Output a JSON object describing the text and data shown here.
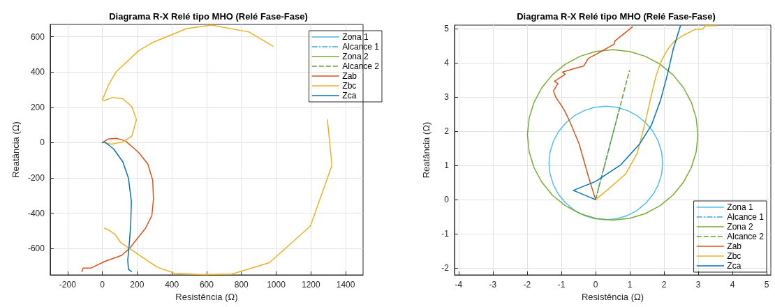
{
  "chart_data": [
    {
      "type": "line",
      "title": "Diagrama R-X Relé tipo MHO (Relé Fase-Fase)",
      "xlabel": "Resistência (Ω)",
      "ylabel": "Reatância (Ω)",
      "xlim": [
        -300,
        1500
      ],
      "xticks": [
        -200,
        0,
        200,
        400,
        600,
        800,
        1000,
        1200,
        1400
      ],
      "ylim": [
        -750,
        670
      ],
      "yticks": [
        -600,
        -400,
        -200,
        0,
        200,
        400,
        600
      ],
      "grid": true,
      "legend": "top right",
      "marker": "none",
      "series": [
        {
          "name": "Zona 1",
          "color": "#4dbeee",
          "line_style": "solid"
        },
        {
          "name": "Alcance 1",
          "color": "#3aa9dc",
          "line_style": "dashdot"
        },
        {
          "name": "Zona 2",
          "color": "#77ac30",
          "line_style": "solid"
        },
        {
          "name": "Alcance 2",
          "color": "#64a028",
          "line_style": "dashed"
        },
        {
          "name": "Zab",
          "color": "#d95319",
          "line_style": "solid",
          "x": [
            0,
            33,
            79,
            131,
            209,
            262,
            290,
            294,
            285,
            248,
            157,
            111,
            13,
            -65,
            -111,
            -118
          ],
          "values": [
            0,
            20,
            24,
            11,
            -56,
            -122,
            -215,
            -321,
            -413,
            -486,
            -599,
            -639,
            -674,
            -711,
            -711,
            -731
          ]
        },
        {
          "name": "Zbc",
          "color": "#edb120",
          "line_style": "solid",
          "x": [
            13,
            33,
            72,
            105,
            163,
            314,
            419,
            575,
            746,
            961,
            1197,
            1321,
            1295,
            null,
            981,
            844,
            628,
            484,
            288,
            209,
            79,
            33,
            0,
            13,
            59,
            118,
            170,
            196,
            170,
            118,
            52,
            10
          ],
          "values": [
            -486,
            -493,
            -519,
            -566,
            -605,
            -705,
            -742,
            -748,
            -745,
            -681,
            -473,
            -129,
            130,
            null,
            547,
            627,
            666,
            646,
            567,
            521,
            401,
            322,
            242,
            238,
            256,
            249,
            203,
            130,
            37,
            4,
            -9,
            0
          ]
        },
        {
          "name": "Zca",
          "color": "#0072bd",
          "line_style": "solid",
          "x": [
            0,
            13,
            65,
            118,
            150,
            167,
            163,
            154,
            146,
            150,
            167
          ],
          "values": [
            0,
            4,
            -36,
            -109,
            -201,
            -334,
            -466,
            -586,
            -665,
            -718,
            -731
          ]
        }
      ]
    },
    {
      "type": "line",
      "title": "Diagrama R-X Relé tipo MHO (Relé Fase-Fase)",
      "xlabel": "Resistência (Ω)",
      "ylabel": "Reatância (Ω)",
      "xlim": [
        -4.12,
        5.12
      ],
      "xticks": [
        -4,
        -3,
        -2,
        -1,
        0,
        1,
        2,
        3,
        4,
        5
      ],
      "ylim": [
        -2.2,
        5.1
      ],
      "yticks": [
        -2,
        -1,
        0,
        1,
        2,
        3,
        4,
        5
      ],
      "grid": true,
      "legend": "bottom right",
      "marker": "none",
      "series": [
        {
          "name": "Zona 1",
          "color": "#4dbeee",
          "line_style": "solid",
          "x": [
            1.96,
            1.93,
            1.83,
            1.68,
            1.47,
            1.22,
            0.94,
            0.62,
            0.3,
            -0.02,
            -0.34,
            -0.62,
            -0.87,
            -1.08,
            -1.23,
            -1.33,
            -1.36,
            -1.33,
            -1.23,
            -1.08,
            -0.87,
            -0.62,
            -0.34,
            -0.02,
            0.3,
            0.62,
            0.94,
            1.22,
            1.47,
            1.68,
            1.83,
            1.93,
            1.96,
            1.93
          ],
          "values": [
            1.07,
            1.39,
            1.71,
            1.99,
            2.24,
            2.45,
            2.6,
            2.7,
            2.73,
            2.7,
            2.6,
            2.45,
            2.24,
            1.99,
            1.71,
            1.39,
            1.07,
            0.75,
            0.43,
            0.15,
            -0.1,
            -0.31,
            -0.46,
            -0.56,
            -0.59,
            -0.56,
            -0.46,
            -0.31,
            -0.1,
            0.15,
            0.43,
            0.75,
            1.07,
            1.39
          ]
        },
        {
          "name": "Alcance 1",
          "color": "#3aa9dc",
          "line_style": "dashdot",
          "x": [
            0,
            0.71
          ],
          "values": [
            0,
            2.7
          ]
        },
        {
          "name": "Zona 2",
          "color": "#77ac30",
          "line_style": "solid",
          "x": [
            2.99,
            2.94,
            2.8,
            2.57,
            2.26,
            1.88,
            1.45,
            0.99,
            0.5,
            0.01,
            -0.45,
            -0.88,
            -1.26,
            -1.57,
            -1.8,
            -1.94,
            -1.99,
            -1.94,
            -1.8,
            -1.57,
            -1.26,
            -0.88,
            -0.45,
            0.01,
            0.5,
            0.99,
            1.45,
            1.88,
            2.26,
            2.57,
            2.8,
            2.94,
            2.99,
            2.94
          ],
          "values": [
            1.89,
            2.38,
            2.84,
            3.27,
            3.65,
            3.96,
            4.19,
            4.33,
            4.38,
            4.33,
            4.19,
            3.96,
            3.65,
            3.27,
            2.84,
            2.38,
            1.89,
            1.4,
            0.94,
            0.51,
            0.13,
            -0.18,
            -0.41,
            -0.55,
            -0.6,
            -0.55,
            -0.41,
            -0.18,
            0.13,
            0.51,
            0.94,
            1.4,
            1.89,
            2.38
          ]
        },
        {
          "name": "Alcance 2",
          "color": "#64a028",
          "line_style": "dashed",
          "x": [
            0,
            0.99
          ],
          "values": [
            0,
            3.77
          ]
        },
        {
          "name": "Zab",
          "color": "#d95319",
          "line_style": "solid",
          "x": [
            0,
            -0.21,
            -0.48,
            -0.76,
            -0.89,
            -0.99,
            -1.1,
            -1.17,
            -1.23,
            -1.1,
            -1.2,
            -0.89,
            -0.96,
            -0.62,
            -0.35,
            -0.21,
            0.06,
            0.54,
            0.57,
            1.08
          ],
          "values": [
            0,
            0.68,
            1.63,
            2.3,
            2.57,
            2.74,
            2.9,
            3.01,
            3.18,
            3.39,
            3.46,
            3.66,
            3.73,
            3.83,
            3.9,
            4.13,
            4.27,
            4.54,
            4.64,
            5.05
          ]
        },
        {
          "name": "Zbc",
          "color": "#edb120",
          "line_style": "solid",
          "x": [
            0,
            0.33,
            0.88,
            1.22,
            1.46,
            1.63,
            1.76,
            1.9,
            2.0,
            2.14,
            2.31,
            2.58,
            2.92,
            3.13,
            3.2,
            3.53
          ],
          "values": [
            0,
            0.27,
            0.75,
            1.36,
            2.3,
            3.05,
            3.59,
            4.0,
            4.2,
            4.44,
            4.64,
            4.81,
            4.98,
            4.98,
            5.08,
            5.08
          ]
        },
        {
          "name": "Zca",
          "color": "#0072bd",
          "line_style": "solid",
          "x": [
            0,
            -0.65,
            0,
            0.74,
            1.29,
            1.63,
            1.9,
            2.1,
            2.27,
            2.48
          ],
          "values": [
            0,
            0.27,
            0.53,
            1.02,
            1.63,
            2.17,
            2.91,
            3.66,
            4.4,
            5.08
          ]
        }
      ]
    }
  ]
}
